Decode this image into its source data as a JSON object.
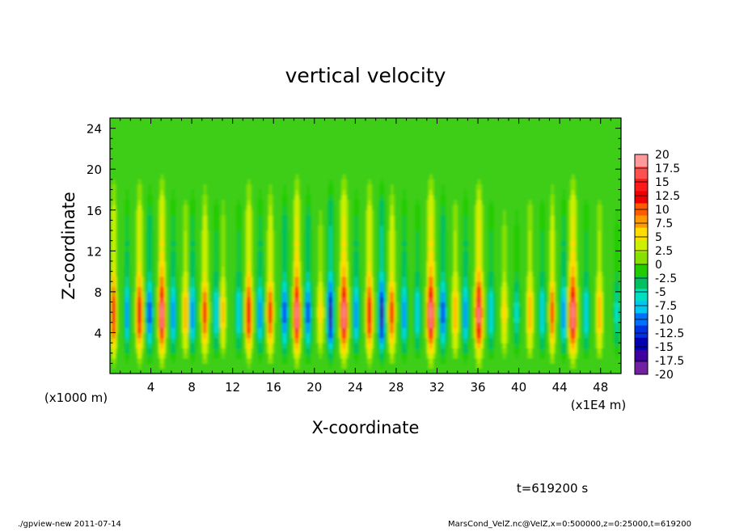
{
  "chart_data": {
    "type": "heatmap",
    "title": "vertical velocity",
    "xlabel": "X-coordinate",
    "ylabel": "Z-coordinate",
    "x_axis": {
      "range": [
        0,
        50
      ],
      "ticks": [
        4,
        8,
        12,
        16,
        20,
        24,
        28,
        32,
        36,
        40,
        44,
        48
      ],
      "tick_labels": [
        "4",
        "8",
        "12",
        "16",
        "20",
        "24",
        "28",
        "32",
        "36",
        "40",
        "44",
        "48"
      ],
      "unit_label": "(x1E4 m)"
    },
    "y_axis": {
      "range": [
        0,
        25
      ],
      "ticks": [
        4,
        8,
        12,
        16,
        20,
        24
      ],
      "tick_labels": [
        "4",
        "8",
        "12",
        "16",
        "20",
        "24"
      ],
      "unit_label": "(x1000 m)"
    },
    "colorbar": {
      "labels": [
        "20",
        "17.5",
        "15",
        "12.5",
        "10",
        "7.5",
        "5",
        "2.5",
        "0",
        "-2.5",
        "-5",
        "-7.5",
        "-10",
        "-12.5",
        "-15",
        "-17.5",
        "-20"
      ],
      "colors": [
        "#ff9a9a",
        "#ff5050",
        "#ff1a1a",
        "#ee0000",
        "#ff5a00",
        "#ff9900",
        "#ffdd00",
        "#ccf000",
        "#88e000",
        "#22cc00",
        "#00c060",
        "#00e0c0",
        "#00c8f0",
        "#0070ff",
        "#0030e0",
        "#0000b0",
        "#4000a0",
        "#7020a0"
      ]
    },
    "columns": [
      {
        "x": 0.3,
        "w": 0.25,
        "amp": 15
      },
      {
        "x": 1.6,
        "w": 0.25,
        "amp": -10
      },
      {
        "x": 2.8,
        "w": 0.3,
        "amp": 15
      },
      {
        "x": 3.8,
        "w": 0.3,
        "amp": -12
      },
      {
        "x": 5.0,
        "w": 0.3,
        "amp": 20
      },
      {
        "x": 6.1,
        "w": 0.3,
        "amp": -10
      },
      {
        "x": 7.3,
        "w": 0.3,
        "amp": 8
      },
      {
        "x": 8.0,
        "w": 0.3,
        "amp": -10
      },
      {
        "x": 9.2,
        "w": 0.3,
        "amp": 12
      },
      {
        "x": 10.3,
        "w": 0.3,
        "amp": -8
      },
      {
        "x": 11.0,
        "w": 0.25,
        "amp": 7
      },
      {
        "x": 12.5,
        "w": 0.3,
        "amp": -8
      },
      {
        "x": 13.5,
        "w": 0.3,
        "amp": 15
      },
      {
        "x": 14.6,
        "w": 0.3,
        "amp": -10
      },
      {
        "x": 15.6,
        "w": 0.3,
        "amp": 12
      },
      {
        "x": 17.0,
        "w": 0.3,
        "amp": -12
      },
      {
        "x": 18.2,
        "w": 0.3,
        "amp": 20
      },
      {
        "x": 19.3,
        "w": 0.3,
        "amp": -12
      },
      {
        "x": 20.5,
        "w": 0.3,
        "amp": 6
      },
      {
        "x": 21.5,
        "w": 0.3,
        "amp": -17
      },
      {
        "x": 22.8,
        "w": 0.35,
        "amp": 20
      },
      {
        "x": 24.0,
        "w": 0.3,
        "amp": -10
      },
      {
        "x": 25.3,
        "w": 0.3,
        "amp": 15
      },
      {
        "x": 26.5,
        "w": 0.3,
        "amp": -17
      },
      {
        "x": 27.5,
        "w": 0.3,
        "amp": 12
      },
      {
        "x": 28.7,
        "w": 0.3,
        "amp": -10
      },
      {
        "x": 30.0,
        "w": 0.3,
        "amp": -8
      },
      {
        "x": 31.3,
        "w": 0.35,
        "amp": 20
      },
      {
        "x": 32.5,
        "w": 0.3,
        "amp": -12
      },
      {
        "x": 33.7,
        "w": 0.3,
        "amp": 8
      },
      {
        "x": 34.7,
        "w": 0.3,
        "amp": -10
      },
      {
        "x": 36.0,
        "w": 0.35,
        "amp": 18
      },
      {
        "x": 37.2,
        "w": 0.3,
        "amp": -8
      },
      {
        "x": 38.5,
        "w": 0.3,
        "amp": 6
      },
      {
        "x": 39.7,
        "w": 0.3,
        "amp": -6
      },
      {
        "x": 41.0,
        "w": 0.3,
        "amp": 8
      },
      {
        "x": 42.2,
        "w": 0.3,
        "amp": -8
      },
      {
        "x": 43.2,
        "w": 0.25,
        "amp": 12
      },
      {
        "x": 44.3,
        "w": 0.3,
        "amp": -10
      },
      {
        "x": 45.2,
        "w": 0.35,
        "amp": 20
      },
      {
        "x": 46.5,
        "w": 0.3,
        "amp": -8
      },
      {
        "x": 47.8,
        "w": 0.3,
        "amp": 8
      },
      {
        "x": 49.5,
        "w": 0.3,
        "amp": -6
      }
    ]
  },
  "time_label": "t=619200 s",
  "footer_left": "./gpview-new   2011-07-14",
  "footer_right": "MarsCond_VelZ.nc@VelZ,x=0:500000,z=0:25000,t=619200"
}
